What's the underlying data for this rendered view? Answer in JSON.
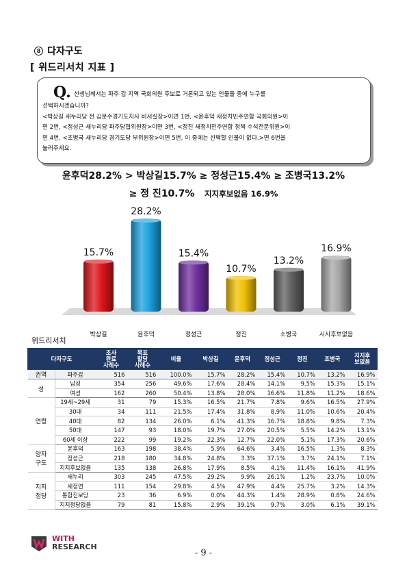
{
  "section": {
    "icon": "circled-8-icon",
    "icon_glyph": "8",
    "title": "다자구도"
  },
  "subtitle": "[ 위드리서치 지표 ]",
  "question": {
    "letter": "Q.",
    "line1": "선생님께서는 파주 갑 지역 국회의원 후보로 거론되고 있는 인물들 중에 누구를",
    "lines": [
      "선택하시겠습니까?",
      "<박상길 새누리당 전 김문수경기도지사 비서실장>이면 1번, <윤후덕 새정치민주연합 국회의원>이",
      "면 2번, <정성근 새누리당 파주당협위원장>이면 3번, <정진 새정치민주연합 정책 수석전문위원>이",
      "면 4번, <조병국 새누리당 경기도당 부위원장>이면 5번, 이 중에는 선택할 인물이 없다.>면 6번을",
      "눌러주세요."
    ]
  },
  "headline": {
    "line1": "윤후덕28.2%  >  박상길15.7%  ≥  정성근15.4%  ≥  조병국13.2%",
    "line2_main": "≥  정  진10.7%",
    "line2_small": "지지후보없음  16.9%"
  },
  "chart_data": {
    "type": "bar",
    "categories": [
      "박상길",
      "윤후덕",
      "정성근",
      "정진",
      "소병국",
      "시시후보없음"
    ],
    "values": [
      15.7,
      28.2,
      15.4,
      10.7,
      13.2,
      16.9
    ],
    "data_labels": [
      "15.7%",
      "28.2%",
      "15.4%",
      "10.7%",
      "13.2%",
      "16.9%"
    ],
    "colors": [
      "#e0161c",
      "#1ba3e0",
      "#7030a0",
      "#f2c200",
      "#606060",
      "#a6a6a6"
    ],
    "ylim": [
      0,
      30
    ],
    "grid": false,
    "legend": "none"
  },
  "source_label": "위드리서치",
  "table": {
    "headers": [
      "다자구도",
      "조사\n완료\n사례수",
      "목표\n할당\n사례수",
      "비율",
      "박상길",
      "윤후덕",
      "정성근",
      "정진",
      "조병국",
      "지지후\n보없음"
    ],
    "groups": [
      {
        "name": "권역",
        "rows": [
          {
            "cat": "파주갑",
            "vals": [
              "516",
              "516",
              "100.0%",
              "15.7%",
              "28.2%",
              "15.4%",
              "10.7%",
              "13.2%",
              "16.9%"
            ]
          }
        ]
      },
      {
        "name": "성",
        "rows": [
          {
            "cat": "남성",
            "vals": [
              "354",
              "256",
              "49.6%",
              "17.6%",
              "28.4%",
              "14.1%",
              "9.5%",
              "15.3%",
              "15.1%"
            ]
          },
          {
            "cat": "여성",
            "vals": [
              "162",
              "260",
              "50.4%",
              "13.8%",
              "28.0%",
              "16.6%",
              "11.8%",
              "11.2%",
              "18.6%"
            ]
          }
        ]
      },
      {
        "name": "연령",
        "rows": [
          {
            "cat": "19세~29세",
            "vals": [
              "31",
              "79",
              "15.3%",
              "16.5%",
              "21.7%",
              "7.8%",
              "9.6%",
              "16.5%",
              "27.9%"
            ]
          },
          {
            "cat": "30대",
            "vals": [
              "34",
              "111",
              "21.5%",
              "17.4%",
              "31.8%",
              "8.9%",
              "11.0%",
              "10.6%",
              "20.4%"
            ]
          },
          {
            "cat": "40대",
            "vals": [
              "82",
              "134",
              "26.0%",
              "6.1%",
              "41.3%",
              "16.7%",
              "18.8%",
              "9.8%",
              "7.3%"
            ]
          },
          {
            "cat": "50대",
            "vals": [
              "147",
              "93",
              "18.0%",
              "19.7%",
              "27.0%",
              "20.5%",
              "5.5%",
              "14.2%",
              "13.1%"
            ]
          },
          {
            "cat": "60세 이상",
            "vals": [
              "222",
              "99",
              "19.2%",
              "22.3%",
              "12.7%",
              "22.0%",
              "5.1%",
              "17.3%",
              "20.6%"
            ]
          }
        ]
      },
      {
        "name": "양자\n구도",
        "rows": [
          {
            "cat": "윤후덕",
            "vals": [
              "163",
              "198",
              "38.4%",
              "5.9%",
              "64.6%",
              "3.4%",
              "16.5%",
              "1.3%",
              "8.3%"
            ]
          },
          {
            "cat": "정성근",
            "vals": [
              "218",
              "180",
              "34.8%",
              "24.8%",
              "3.3%",
              "37.1%",
              "3.7%",
              "24.1%",
              "7.1%"
            ]
          },
          {
            "cat": "지지후보없음",
            "vals": [
              "135",
              "138",
              "26.8%",
              "17.9%",
              "8.5%",
              "4.1%",
              "11.4%",
              "16.1%",
              "41.9%"
            ]
          }
        ]
      },
      {
        "name": "지지\n정당",
        "rows": [
          {
            "cat": "새누리",
            "vals": [
              "303",
              "245",
              "47.5%",
              "29.2%",
              "9.9%",
              "26.1%",
              "1.2%",
              "23.7%",
              "10.0%"
            ]
          },
          {
            "cat": "새정연",
            "vals": [
              "111",
              "154",
              "29.8%",
              "4.5%",
              "47.9%",
              "4.4%",
              "25.7%",
              "3.2%",
              "14.3%"
            ]
          },
          {
            "cat": "통합진보당",
            "vals": [
              "23",
              "36",
              "6.9%",
              "0.0%",
              "44.3%",
              "1.4%",
              "28.9%",
              "0.8%",
              "24.6%"
            ]
          },
          {
            "cat": "지지정당없음",
            "vals": [
              "79",
              "81",
              "15.8%",
              "2.9%",
              "39.1%",
              "9.7%",
              "3.0%",
              "6.1%",
              "39.1%"
            ]
          }
        ]
      }
    ]
  },
  "footer": {
    "logo_icon": "with-research-logo-icon",
    "logo_line1": "WITH",
    "logo_line2": "RESEARCH",
    "page": "- 9 -"
  }
}
